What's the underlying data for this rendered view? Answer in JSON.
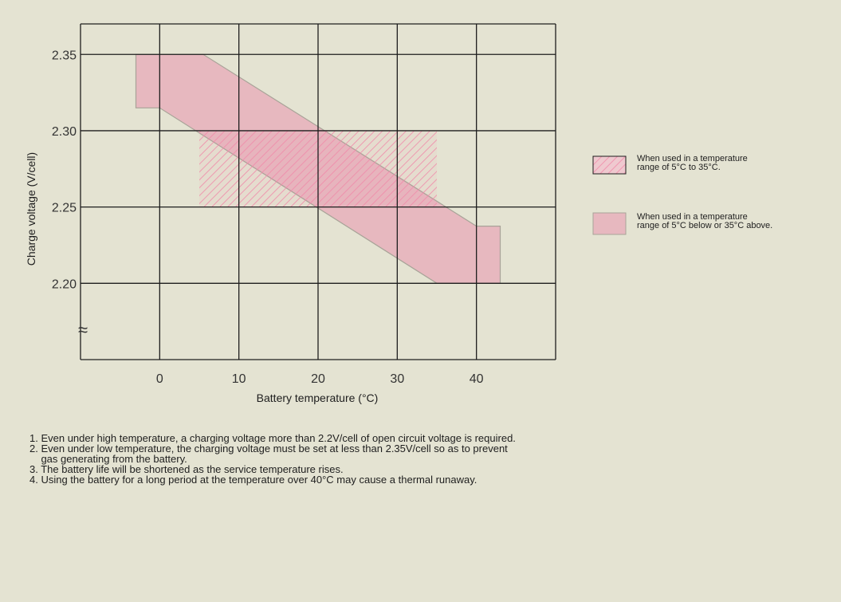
{
  "chart_data": {
    "type": "area",
    "xlabel": "Battery temperature (°C)",
    "ylabel": "Charge voltage (V/cell)",
    "xlim": [
      -10,
      50
    ],
    "ylim": [
      2.15,
      2.37
    ],
    "x_ticks": [
      "0",
      "10",
      "20",
      "30",
      "40"
    ],
    "y_ticks": [
      "2.35",
      "2.30",
      "2.25",
      "2.20"
    ],
    "axis_break_symbol": "≈",
    "grid": true,
    "legend_placement": "right",
    "series": [
      {
        "name": "When used in a temperature range of 5°C below or 35°C above.",
        "style": "solid",
        "color": "#e7b8bf",
        "upper": [
          [
            -3,
            2.35
          ],
          [
            5.5,
            2.35
          ],
          [
            40,
            2.2375
          ],
          [
            43,
            2.2375
          ]
        ],
        "lower": [
          [
            -3,
            2.315
          ],
          [
            0,
            2.315
          ],
          [
            35,
            2.2
          ],
          [
            43,
            2.2
          ]
        ]
      },
      {
        "name": "When used in a temperature range of 5°C to 35°C.",
        "style": "hatched",
        "color": "#f08aa9",
        "x_range": [
          5,
          35
        ],
        "y_range": [
          2.25,
          2.3
        ]
      }
    ],
    "legend": [
      {
        "line1": "When used in a temperature",
        "line2": "range of 5°C to 35°C.",
        "style": "hatched"
      },
      {
        "line1": "When used in a temperature",
        "line2": "range of 5°C below or 35°C above.",
        "style": "solid"
      }
    ]
  },
  "notes": [
    "1. Even under high temperature, a charging voltage more than 2.2V/cell of open circuit voltage is required.",
    "2. Even under low temperature, the charging voltage must be set at less than 2.35V/cell so as to prevent",
    "    gas generating from the battery.",
    "3. The battery life will be shortened as the service temperature rises.",
    "4. Using the battery for a long period at the temperature over 40°C may cause a thermal runaway."
  ],
  "colors": {
    "background": "#e4e3d2",
    "grid": "#1e1e1e",
    "band_fill": "#e7b8bf",
    "band_stroke": "#a8a398",
    "hatch": "#f08aa9"
  }
}
